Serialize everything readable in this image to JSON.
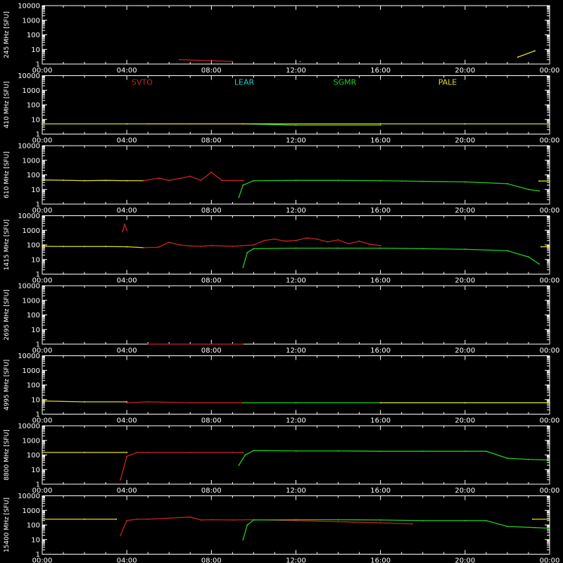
{
  "chart_data": {
    "type": "line",
    "x_ticks": [
      "00:00",
      "04:00",
      "08:00",
      "12:00",
      "16:00",
      "20:00",
      "00:00"
    ],
    "x_range_hours": [
      0,
      24
    ],
    "y_ticks": [
      "1",
      "10",
      "100",
      "1000",
      "10000"
    ],
    "ylim": [
      1,
      10000
    ],
    "y_scale": "log",
    "stations": [
      {
        "name": "SVTO",
        "color": "#cc2222"
      },
      {
        "name": "LEAR",
        "color": "#22cccc"
      },
      {
        "name": "SGMR",
        "color": "#22cc22"
      },
      {
        "name": "PALE",
        "color": "#dddd22"
      }
    ],
    "panels": [
      {
        "label": "245 MHz [SFU]",
        "series": [
          {
            "station": "SVTO",
            "x": [
              6.5,
              9.0
            ],
            "y": [
              2,
              1.5
            ]
          },
          {
            "station": "SGMR",
            "x": [
              12.2
            ],
            "y": [
              1.5
            ]
          },
          {
            "station": "PALE",
            "x": [
              22.5,
              23.3
            ],
            "y": [
              3,
              8
            ]
          }
        ]
      },
      {
        "label": "410 MHz [SFU]",
        "series": [
          {
            "station": "SVTO",
            "x": [
              5.0,
              7.0,
              9.5
            ],
            "y": [
              5,
              5,
              5
            ]
          },
          {
            "station": "SGMR",
            "x": [
              9.5,
              12.0,
              16.0
            ],
            "y": [
              5,
              4,
              4
            ]
          },
          {
            "station": "PALE",
            "x": [
              0,
              4.0,
              16.0,
              20.0,
              24.0
            ],
            "y": [
              5,
              5,
              5,
              5,
              5
            ]
          }
        ]
      },
      {
        "label": "610 MHz [SFU]",
        "series": [
          {
            "station": "PALE",
            "x": [
              0,
              1.0,
              2.0,
              3.0,
              4.0,
              4.8
            ],
            "y": [
              45,
              43,
              40,
              42,
              40,
              40
            ]
          },
          {
            "station": "SVTO",
            "x": [
              4.8,
              5.5,
              6.0,
              7.0,
              7.5,
              8.0,
              8.5,
              9.5
            ],
            "y": [
              40,
              60,
              42,
              80,
              42,
              150,
              42,
              40
            ]
          },
          {
            "station": "SGMR",
            "x": [
              9.3,
              9.5,
              10.0,
              12.0,
              14.0,
              16.0,
              17.0,
              18.0,
              20.0,
              22.0,
              23.0,
              23.5
            ],
            "y": [
              3,
              20,
              40,
              42,
              42,
              40,
              38,
              36,
              33,
              25,
              10,
              8
            ]
          },
          {
            "station": "PALE",
            "x": [
              23.5,
              24.0
            ],
            "y": [
              38,
              38
            ]
          }
        ]
      },
      {
        "label": "1415 MHz [SFU]",
        "series": [
          {
            "station": "PALE",
            "x": [
              0,
              1.0,
              2.0,
              3.0,
              4.0,
              4.8
            ],
            "y": [
              80,
              78,
              78,
              78,
              75,
              65
            ]
          },
          {
            "station": "SVTO",
            "x": [
              3.8,
              3.9,
              4.0
            ],
            "y": [
              800,
              2500,
              1000
            ]
          },
          {
            "station": "SVTO",
            "x": [
              4.8,
              5.5,
              6.0,
              6.5,
              7.0,
              7.5,
              8.0,
              9.0,
              10.0,
              10.5,
              11.0,
              11.5,
              12.0,
              12.5,
              13.0,
              13.5,
              14.0,
              14.5,
              15.0,
              15.5,
              16.0
            ],
            "y": [
              65,
              70,
              150,
              100,
              85,
              80,
              90,
              80,
              100,
              200,
              250,
              180,
              200,
              300,
              250,
              160,
              220,
              120,
              180,
              110,
              90
            ]
          },
          {
            "station": "SGMR",
            "x": [
              9.5,
              9.7,
              10.0,
              12.0,
              14.0,
              16.0,
              18.0,
              20.0,
              22.0,
              23.0,
              23.5
            ],
            "y": [
              3,
              30,
              55,
              60,
              60,
              60,
              55,
              50,
              40,
              15,
              5
            ]
          },
          {
            "station": "PALE",
            "x": [
              23.6,
              24.0
            ],
            "y": [
              75,
              75
            ]
          }
        ]
      },
      {
        "label": "2695 MHz [SFU]",
        "series": [
          {
            "station": "SVTO",
            "x": [
              5.0,
              9.5
            ],
            "y": [
              1,
              1
            ]
          }
        ]
      },
      {
        "label": "4995 MHz [SFU]",
        "series": [
          {
            "station": "PALE",
            "x": [
              0,
              2.0,
              4.0
            ],
            "y": [
              8,
              7,
              7
            ]
          },
          {
            "station": "SVTO",
            "x": [
              4.0,
              5.0,
              7.0,
              9.5
            ],
            "y": [
              6,
              7,
              6,
              6
            ]
          },
          {
            "station": "SGMR",
            "x": [
              9.5,
              12.0,
              16.0,
              20.0,
              24.0
            ],
            "y": [
              6,
              6,
              6,
              6,
              6
            ]
          },
          {
            "station": "PALE",
            "x": [
              16.0,
              20.0,
              24.0
            ],
            "y": [
              6,
              6,
              6
            ]
          }
        ]
      },
      {
        "label": "8800 MHz [SFU]",
        "series": [
          {
            "station": "PALE",
            "x": [
              0,
              2.0,
              4.0
            ],
            "y": [
              150,
              150,
              150
            ]
          },
          {
            "station": "SVTO",
            "x": [
              3.7,
              4.0,
              4.5,
              5.0,
              7.0,
              9.0,
              9.5
            ],
            "y": [
              2,
              80,
              150,
              150,
              150,
              150,
              150
            ]
          },
          {
            "station": "SGMR",
            "x": [
              9.3,
              9.6,
              10.0,
              12.0,
              14.0,
              16.0,
              18.0,
              20.0,
              21.0,
              22.0,
              23.0,
              24.0
            ],
            "y": [
              20,
              100,
              200,
              190,
              190,
              180,
              180,
              180,
              180,
              60,
              50,
              45
            ]
          }
        ]
      },
      {
        "label": "15400 MHz [SFU]",
        "series": [
          {
            "station": "PALE",
            "x": [
              0,
              2.0,
              3.5
            ],
            "y": [
              250,
              250,
              250
            ]
          },
          {
            "station": "SVTO",
            "x": [
              3.7,
              4.0,
              4.5,
              5.0,
              7.0,
              7.5,
              8.0,
              9.0,
              10.0,
              12.0,
              14.0,
              16.0,
              17.5
            ],
            "y": [
              20,
              200,
              250,
              250,
              350,
              220,
              230,
              220,
              230,
              200,
              170,
              140,
              120
            ]
          },
          {
            "station": "SGMR",
            "x": [
              9.5,
              9.7,
              10.0,
              12.0,
              14.0,
              16.0,
              18.0,
              20.0,
              21.0,
              22.0,
              24.0
            ],
            "y": [
              10,
              100,
              220,
              230,
              230,
              220,
              200,
              200,
              200,
              80,
              60
            ]
          },
          {
            "station": "PALE",
            "x": [
              23.2,
              24.0
            ],
            "y": [
              250,
              250
            ]
          }
        ]
      }
    ]
  }
}
